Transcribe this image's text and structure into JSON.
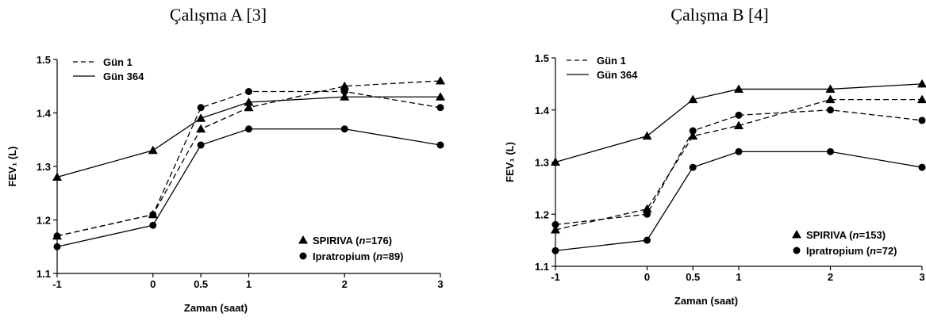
{
  "chart_data": [
    {
      "type": "line",
      "title": "Çalışma A [3]",
      "xlabel": "Zaman (saat)",
      "ylabel": "FEV₁ (L)",
      "xlim": [
        -1,
        3
      ],
      "ylim": [
        1.1,
        1.5
      ],
      "x_ticks": [
        "-1",
        "0",
        "0.5",
        "1",
        "2",
        "3"
      ],
      "y_ticks": [
        "1.1",
        "1.2",
        "1.3",
        "1.4",
        "1.5"
      ],
      "x": [
        -1,
        0,
        0.5,
        1,
        2,
        3
      ],
      "legend_lines": [
        {
          "label": "Gün 1",
          "dash": "dashed"
        },
        {
          "label": "Gün 364",
          "dash": "solid"
        }
      ],
      "legend_markers": [
        {
          "label": "SPIRIVA (",
          "n_label": "n",
          "n_value": "=176)",
          "marker": "triangle"
        },
        {
          "label": "Ipratropium (",
          "n_label": "n",
          "n_value": "=89)",
          "marker": "circle"
        }
      ],
      "series": [
        {
          "drug": "SPIRIVA",
          "day": "Gün 1",
          "dash": "dashed",
          "marker": "triangle",
          "values": [
            1.17,
            1.21,
            1.37,
            1.41,
            1.45,
            1.46
          ]
        },
        {
          "drug": "SPIRIVA",
          "day": "Gün 364",
          "dash": "solid",
          "marker": "triangle",
          "values": [
            1.28,
            1.33,
            1.39,
            1.42,
            1.43,
            1.43
          ]
        },
        {
          "drug": "Ipratropium",
          "day": "Gün 1",
          "dash": "dashed",
          "marker": "circle",
          "values": [
            1.17,
            1.21,
            1.41,
            1.44,
            1.44,
            1.41
          ]
        },
        {
          "drug": "Ipratropium",
          "day": "Gün 364",
          "dash": "solid",
          "marker": "circle",
          "values": [
            1.15,
            1.19,
            1.34,
            1.37,
            1.37,
            1.34
          ]
        }
      ]
    },
    {
      "type": "line",
      "title": "Çalışma B [4]",
      "xlabel": "Zaman (saat)",
      "ylabel": "FEV₁ (L)",
      "xlim": [
        -1,
        3
      ],
      "ylim": [
        1.1,
        1.5
      ],
      "x_ticks": [
        "-1",
        "0",
        "0.5",
        "1",
        "2",
        "3"
      ],
      "y_ticks": [
        "1.1",
        "1.2",
        "1.3",
        "1.4",
        "1.5"
      ],
      "x": [
        -1,
        0,
        0.5,
        1,
        2,
        3
      ],
      "legend_lines": [
        {
          "label": "Gün 1",
          "dash": "dashed"
        },
        {
          "label": "Gün 364",
          "dash": "solid"
        }
      ],
      "legend_markers": [
        {
          "label": "SPIRIVA (",
          "n_label": "n",
          "n_value": "=153)",
          "marker": "triangle"
        },
        {
          "label": "Ipratropium (",
          "n_label": "n",
          "n_value": "=72)",
          "marker": "circle"
        }
      ],
      "series": [
        {
          "drug": "SPIRIVA",
          "day": "Gün 1",
          "dash": "dashed",
          "marker": "triangle",
          "values": [
            1.17,
            1.21,
            1.35,
            1.37,
            1.42,
            1.42
          ]
        },
        {
          "drug": "SPIRIVA",
          "day": "Gün 364",
          "dash": "solid",
          "marker": "triangle",
          "values": [
            1.3,
            1.35,
            1.42,
            1.44,
            1.44,
            1.45
          ]
        },
        {
          "drug": "Ipratropium",
          "day": "Gün 1",
          "dash": "dashed",
          "marker": "circle",
          "values": [
            1.18,
            1.2,
            1.36,
            1.39,
            1.4,
            1.38
          ]
        },
        {
          "drug": "Ipratropium",
          "day": "Gün 364",
          "dash": "solid",
          "marker": "circle",
          "values": [
            1.13,
            1.15,
            1.29,
            1.32,
            1.32,
            1.29
          ]
        }
      ]
    }
  ]
}
